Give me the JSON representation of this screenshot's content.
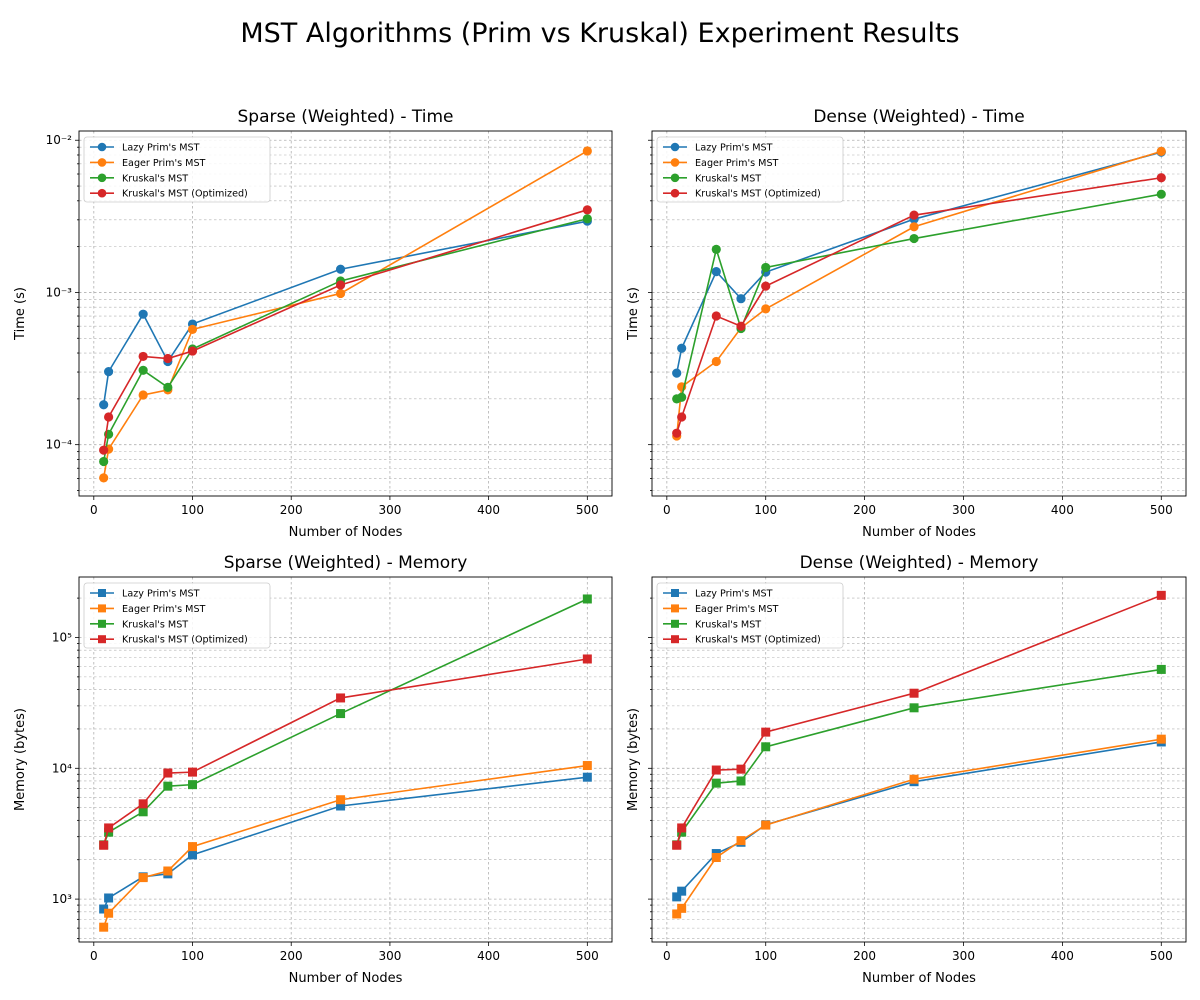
{
  "figure": {
    "suptitle": "MST Algorithms (Prim vs Kruskal) Experiment Results"
  },
  "chart_data": [
    {
      "type": "line",
      "title": "Sparse (Weighted) - Time",
      "xlabel": "Number of Nodes",
      "ylabel": "Time (s)",
      "yscale": "log",
      "xlim": [
        -15,
        525
      ],
      "ylim": [
        4.6e-05,
        0.0115
      ],
      "xticks": [
        0,
        100,
        200,
        300,
        400,
        500
      ],
      "yticks": [
        {
          "v": 0.0001,
          "label": "10⁻⁴"
        },
        {
          "v": 0.001,
          "label": "10⁻³"
        },
        {
          "v": 0.01,
          "label": "10⁻²"
        }
      ],
      "grid": true,
      "legend": "top-left",
      "marker": "circle",
      "x": [
        10,
        15,
        50,
        75,
        100,
        250,
        500
      ],
      "series": [
        {
          "name": "Lazy Prim's MST",
          "color": "#1f77b4",
          "values": [
            0.000183,
            0.000302,
            0.00072,
            0.000352,
            0.00062,
            0.00142,
            0.00294
          ]
        },
        {
          "name": "Eager Prim's MST",
          "color": "#ff7f0e",
          "values": [
            6.05e-05,
            9.35e-05,
            0.000212,
            0.000229,
            0.000572,
            0.000985,
            0.0085
          ]
        },
        {
          "name": "Kruskal's MST",
          "color": "#2ca02c",
          "values": [
            7.75e-05,
            0.000117,
            0.000308,
            0.000238,
            0.000425,
            0.00119,
            0.00305
          ]
        },
        {
          "name": "Kruskal's MST (Optimized)",
          "color": "#d62728",
          "values": [
            9.2e-05,
            0.000152,
            0.00038,
            0.000368,
            0.000412,
            0.00112,
            0.00349
          ]
        }
      ]
    },
    {
      "type": "line",
      "title": "Dense (Weighted) - Time",
      "xlabel": "Number of Nodes",
      "ylabel": "Time (s)",
      "yscale": "log",
      "xlim": [
        -15,
        525
      ],
      "ylim": [
        4.6e-05,
        0.0115
      ],
      "xticks": [
        0,
        100,
        200,
        300,
        400,
        500
      ],
      "yticks": [
        {
          "v": 0.0001,
          "label": "10⁻⁴"
        },
        {
          "v": 0.001,
          "label": "10⁻³"
        },
        {
          "v": 0.01,
          "label": "10⁻²"
        }
      ],
      "shared_y_hidden_labels": true,
      "grid": true,
      "legend": "top-left",
      "marker": "circle",
      "x": [
        10,
        15,
        50,
        75,
        100,
        250,
        500
      ],
      "series": [
        {
          "name": "Lazy Prim's MST",
          "color": "#1f77b4",
          "values": [
            0.000295,
            0.00043,
            0.00137,
            0.00091,
            0.00136,
            0.00303,
            0.00835
          ]
        },
        {
          "name": "Eager Prim's MST",
          "color": "#ff7f0e",
          "values": [
            0.000114,
            0.00024,
            0.000352,
            0.000585,
            0.00078,
            0.0027,
            0.00845
          ]
        },
        {
          "name": "Kruskal's MST",
          "color": "#2ca02c",
          "values": [
            0.0002,
            0.000205,
            0.00192,
            0.00058,
            0.00146,
            0.00226,
            0.00442
          ]
        },
        {
          "name": "Kruskal's MST (Optimized)",
          "color": "#d62728",
          "values": [
            0.000119,
            0.000152,
            0.0007,
            0.0006,
            0.0011,
            0.00322,
            0.00567
          ]
        }
      ]
    },
    {
      "type": "line",
      "title": "Sparse (Weighted) - Memory",
      "xlabel": "Number of Nodes",
      "ylabel": "Memory (bytes)",
      "yscale": "log",
      "xlim": [
        -15,
        525
      ],
      "ylim": [
        470,
        290000
      ],
      "xticks": [
        0,
        100,
        200,
        300,
        400,
        500
      ],
      "yticks": [
        {
          "v": 1000,
          "label": "10³"
        },
        {
          "v": 10000,
          "label": "10⁴"
        },
        {
          "v": 100000,
          "label": "10⁵"
        }
      ],
      "grid": true,
      "legend": "top-left",
      "marker": "square",
      "x": [
        10,
        15,
        50,
        75,
        100,
        250,
        500
      ],
      "series": [
        {
          "name": "Lazy Prim's MST",
          "color": "#1f77b4",
          "values": [
            840,
            1020,
            1480,
            1560,
            2180,
            5150,
            8550
          ]
        },
        {
          "name": "Eager Prim's MST",
          "color": "#ff7f0e",
          "values": [
            610,
            780,
            1460,
            1640,
            2520,
            5750,
            10500
          ]
        },
        {
          "name": "Kruskal's MST",
          "color": "#2ca02c",
          "values": [
            2600,
            3250,
            4650,
            7300,
            7500,
            26200,
            197000
          ]
        },
        {
          "name": "Kruskal's MST (Optimized)",
          "color": "#d62728",
          "values": [
            2580,
            3500,
            5350,
            9200,
            9350,
            34500,
            68500
          ]
        }
      ]
    },
    {
      "type": "line",
      "title": "Dense (Weighted) - Memory",
      "xlabel": "Number of Nodes",
      "ylabel": "Memory (bytes)",
      "yscale": "log",
      "xlim": [
        -15,
        525
      ],
      "ylim": [
        470,
        290000
      ],
      "xticks": [
        0,
        100,
        200,
        300,
        400,
        500
      ],
      "yticks": [
        {
          "v": 1000,
          "label": "10³"
        },
        {
          "v": 10000,
          "label": "10⁴"
        },
        {
          "v": 100000,
          "label": "10⁵"
        }
      ],
      "shared_y_hidden_labels": true,
      "grid": true,
      "legend": "top-left",
      "marker": "square",
      "x": [
        10,
        15,
        50,
        75,
        100,
        250,
        500
      ],
      "series": [
        {
          "name": "Lazy Prim's MST",
          "color": "#1f77b4",
          "values": [
            1040,
            1150,
            2230,
            2720,
            3700,
            7900,
            15900
          ]
        },
        {
          "name": "Eager Prim's MST",
          "color": "#ff7f0e",
          "values": [
            770,
            850,
            2080,
            2800,
            3680,
            8250,
            16700
          ]
        },
        {
          "name": "Kruskal's MST",
          "color": "#2ca02c",
          "values": [
            2600,
            3250,
            7700,
            8000,
            14600,
            29000,
            57000
          ]
        },
        {
          "name": "Kruskal's MST (Optimized)",
          "color": "#d62728",
          "values": [
            2580,
            3500,
            9700,
            9850,
            18900,
            37500,
            210000
          ]
        }
      ]
    }
  ]
}
